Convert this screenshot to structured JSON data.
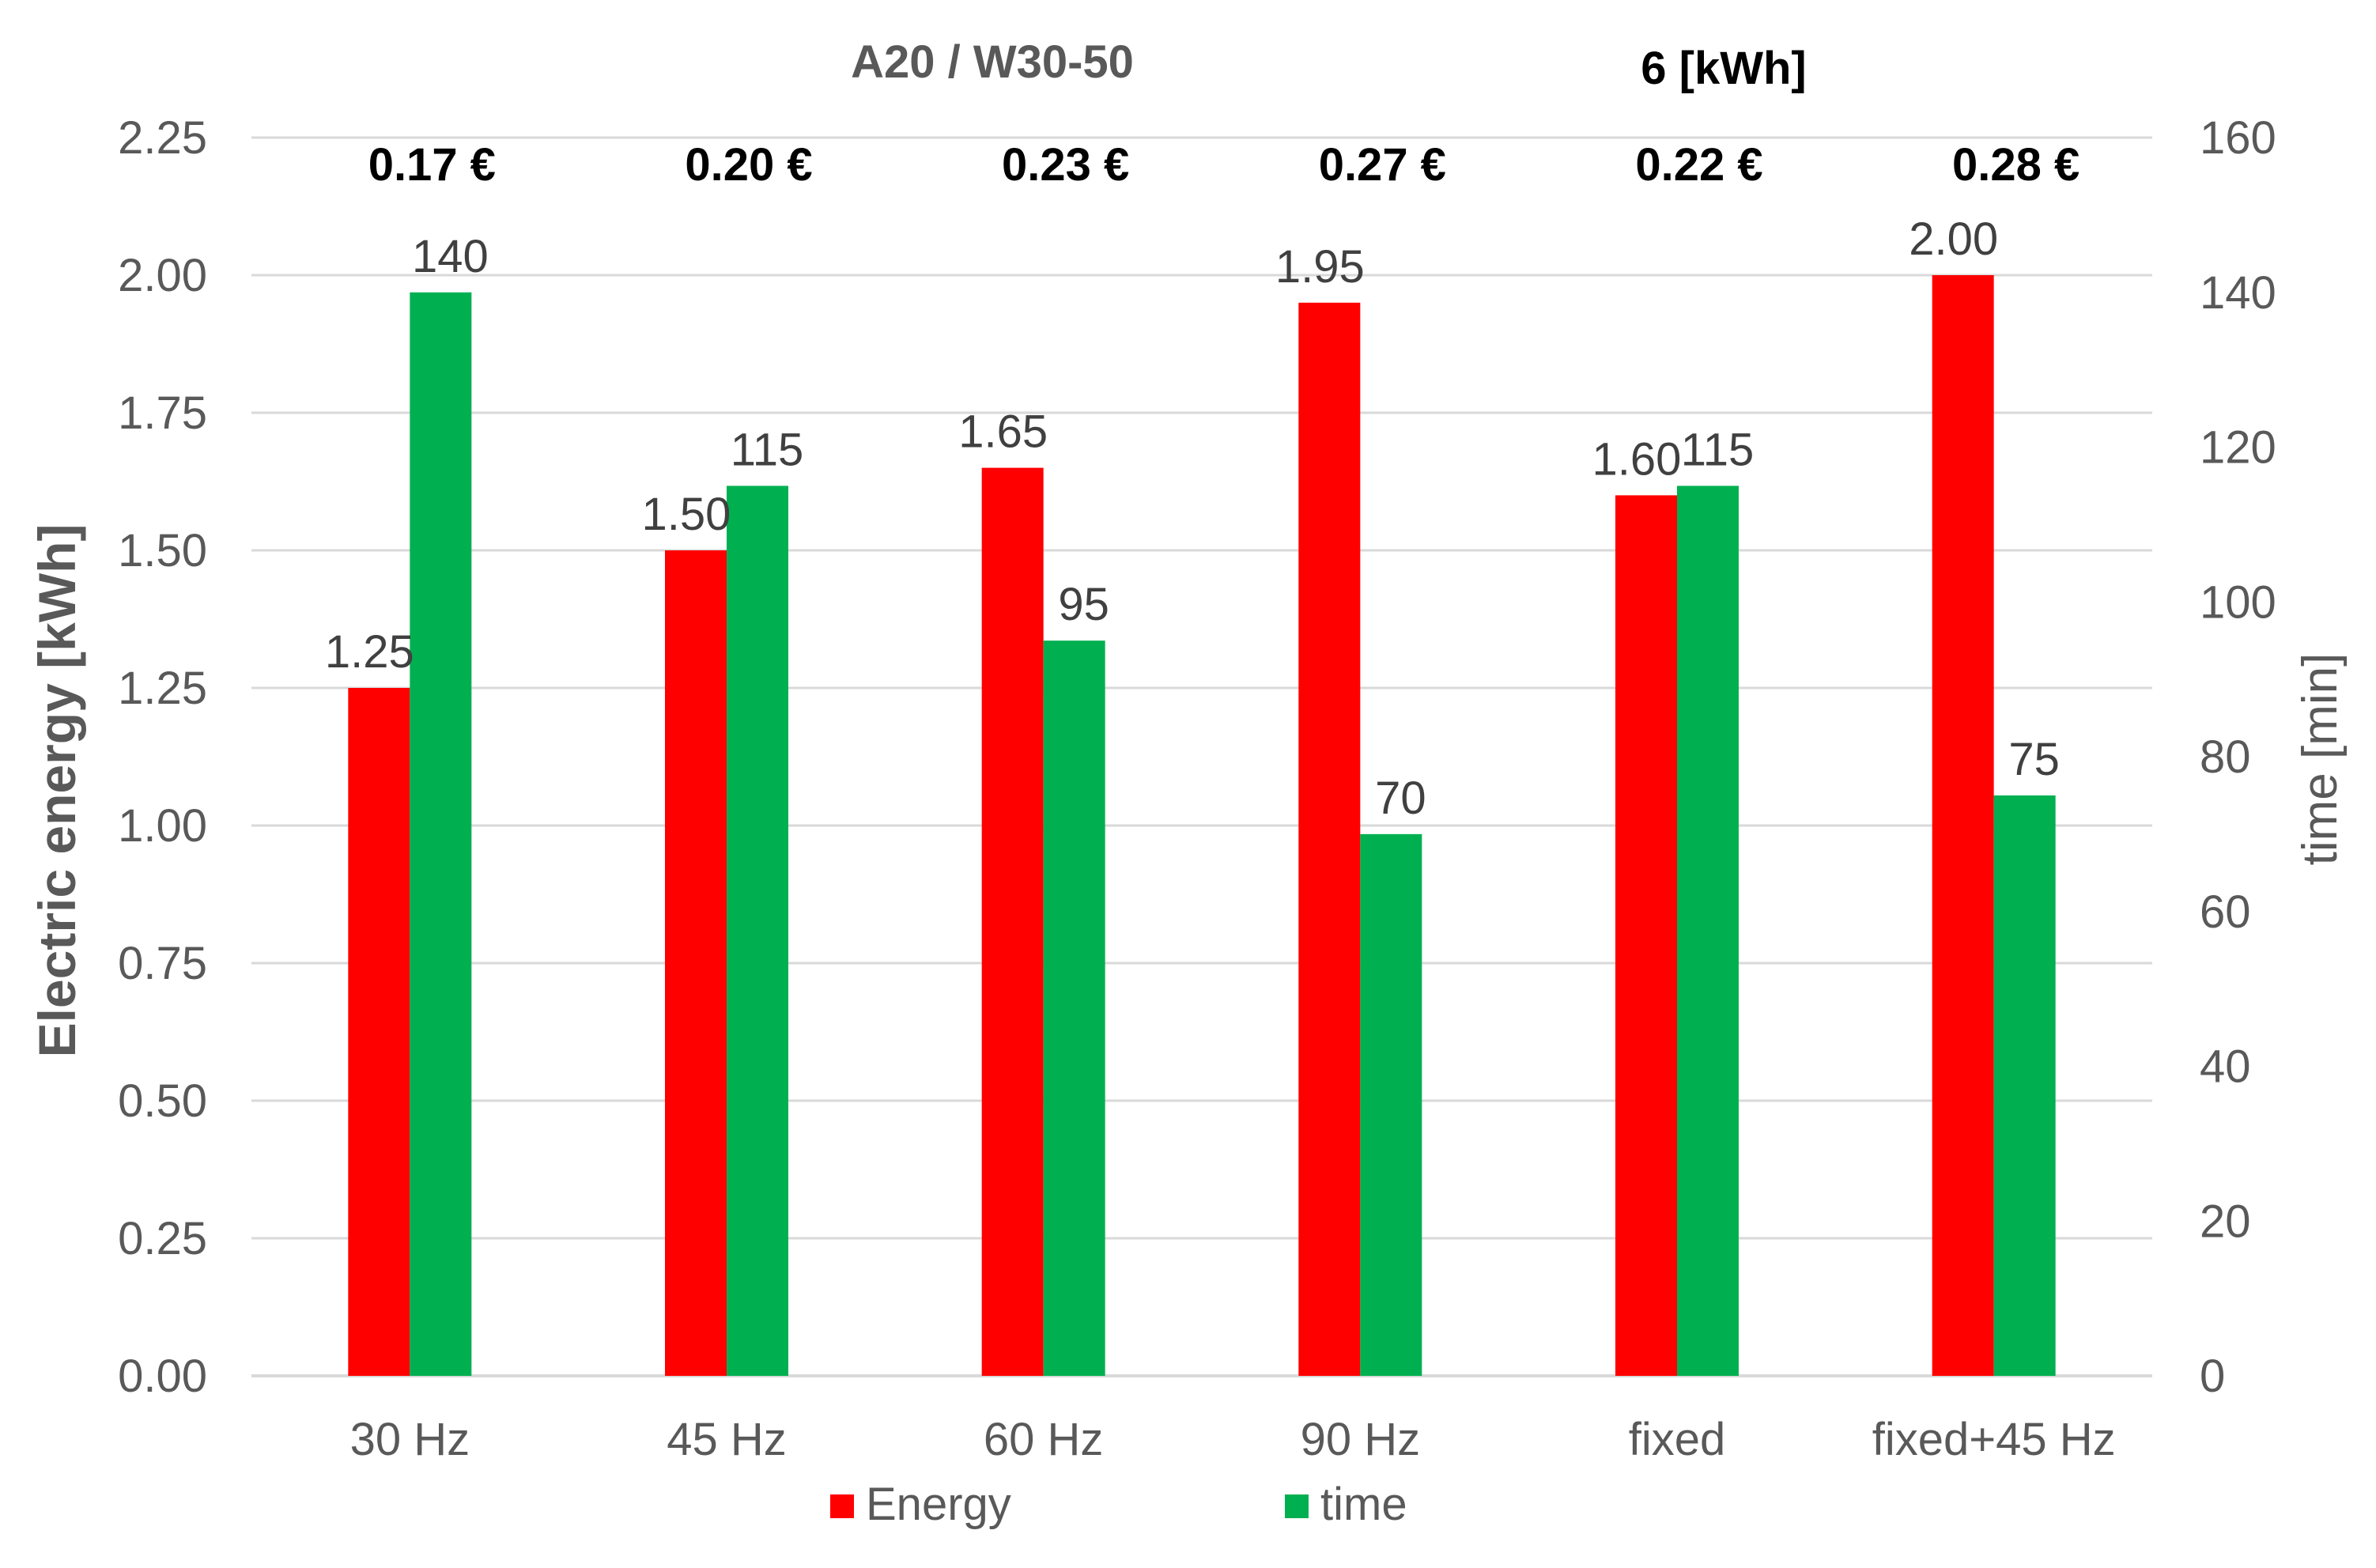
{
  "chart_data": {
    "type": "bar",
    "title": "A20 / W30-50",
    "subtitle": "6 [kWh]",
    "categories": [
      "30 Hz",
      "45 Hz",
      "60 Hz",
      "90 Hz",
      "fixed",
      "fixed+45 Hz"
    ],
    "cost_labels": [
      "0.17 €",
      "0.20 €",
      "0.23 €",
      "0.27 €",
      "0.22 €",
      "0.28 €"
    ],
    "series": [
      {
        "name": "Energy",
        "axis": "left",
        "color": "#ff0000",
        "values": [
          1.25,
          1.5,
          1.65,
          1.95,
          1.6,
          2.0
        ],
        "value_labels": [
          "1.25",
          "1.50",
          "1.65",
          "1.95",
          "1.60",
          "2.00"
        ]
      },
      {
        "name": "time",
        "axis": "right",
        "color": "#00b050",
        "values": [
          140,
          115,
          95,
          70,
          115,
          75
        ],
        "value_labels": [
          "140",
          "115",
          "95",
          "70",
          "115",
          "75"
        ]
      }
    ],
    "ylabel_left": "Electric energy  [kWh]",
    "ylabel_right": "time  [min]",
    "ylim_left": [
      0,
      2.25
    ],
    "ylim_right": [
      0,
      160
    ],
    "yticks_left": [
      "0.00",
      "0.25",
      "0.50",
      "0.75",
      "1.00",
      "1.25",
      "1.50",
      "1.75",
      "2.00",
      "2.25"
    ],
    "yticks_right": [
      "0",
      "20",
      "40",
      "60",
      "80",
      "100",
      "120",
      "140",
      "160"
    ],
    "grid": true,
    "legend_position": "bottom"
  }
}
